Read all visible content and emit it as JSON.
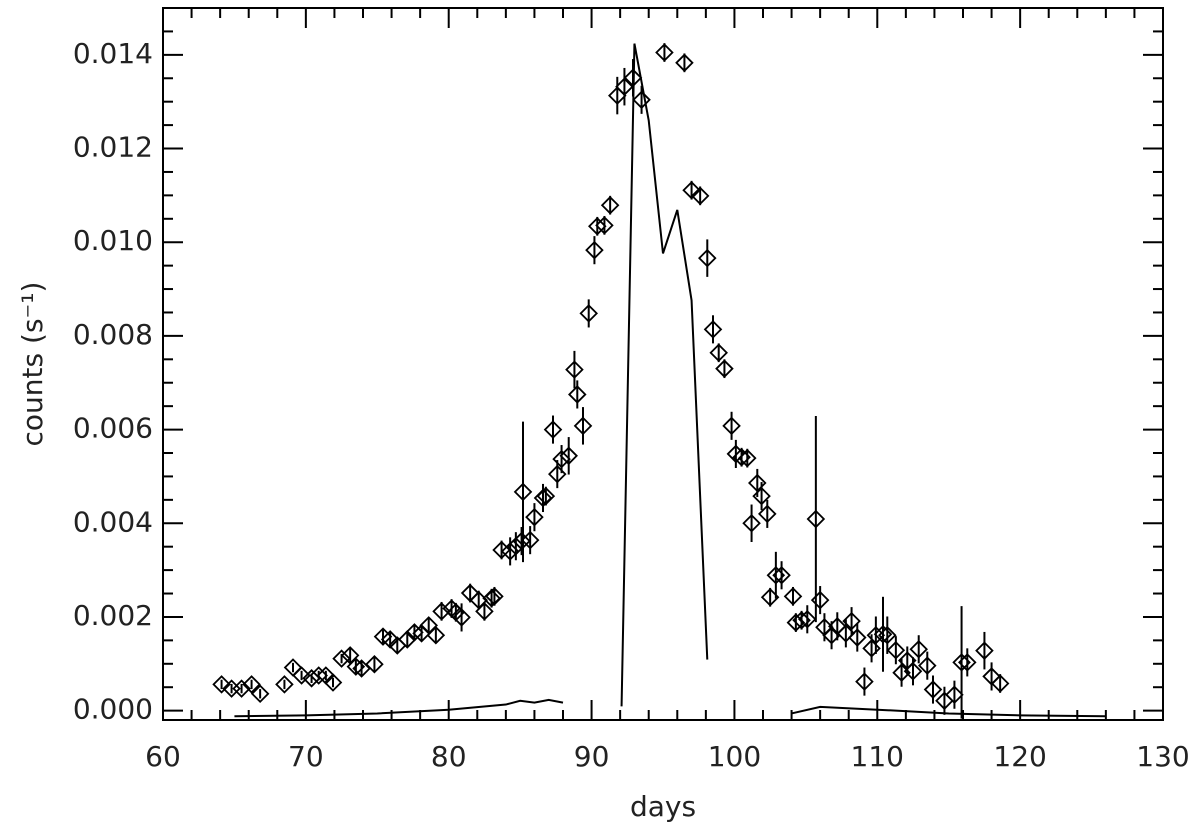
{
  "chart_data": {
    "type": "scatter",
    "xlabel": "days",
    "ylabel": "counts (s⁻¹)",
    "xlim": [
      60,
      130
    ],
    "xticks": [
      60,
      70,
      80,
      90,
      100,
      110,
      120,
      130
    ],
    "ylim": [
      -0.0002,
      0.015
    ],
    "yticks": [
      {
        "value": 0,
        "label": "0.000"
      },
      0.002,
      0.004,
      0.006,
      0.008,
      {
        "value": 0.01,
        "label": "0.010"
      },
      0.012,
      0.014
    ],
    "xminor": 5,
    "yminor": 4,
    "series": [
      {
        "type": "scatter",
        "color": "#000000",
        "x": [
          64.1,
          64.8,
          65.5,
          66.2,
          66.8,
          68.5,
          69.1,
          69.7,
          70.4,
          70.9,
          71.4,
          71.9,
          72.5,
          73.1,
          73.5,
          73.9,
          74.8,
          75.4,
          75.9,
          76.4,
          77.1,
          77.6,
          78.1,
          78.6,
          79.1,
          79.5,
          80.2,
          80.5,
          80.9,
          81.5,
          82.1,
          82.5,
          83.0,
          83.2,
          83.7,
          84.3,
          84.7,
          85.1,
          85.2,
          85.7,
          86.0,
          86.6,
          86.8,
          87.3,
          87.6,
          87.9,
          88.4,
          88.8,
          89.0,
          89.4,
          89.8,
          90.2,
          90.4,
          90.9,
          91.3,
          91.8,
          92.3,
          92.9,
          93.5,
          95.1,
          96.5,
          97.0,
          97.6,
          98.1,
          98.5,
          98.9,
          99.3,
          99.8,
          100.1,
          100.5,
          100.9,
          101.2,
          101.6,
          101.9,
          102.3,
          102.5,
          102.9,
          103.3,
          104.1,
          104.3,
          104.7,
          105.1,
          105.7,
          106.0,
          106.3,
          106.8,
          107.2,
          107.8,
          108.2,
          108.6,
          109.1,
          109.6,
          109.9,
          110.4,
          110.7,
          111.3,
          111.7,
          112.1,
          112.5,
          112.9,
          113.5,
          113.9,
          114.7,
          115.4,
          115.9,
          116.3,
          117.5,
          118.0,
          118.6
        ],
        "values": [
          0.00056,
          0.00047,
          0.00047,
          0.00056,
          0.00036,
          0.00056,
          0.00092,
          0.00075,
          0.00069,
          0.00075,
          0.00075,
          0.0006,
          0.00111,
          0.00118,
          0.00094,
          0.0009,
          0.00099,
          0.00158,
          0.00152,
          0.00139,
          0.00152,
          0.00167,
          0.00165,
          0.00182,
          0.00161,
          0.00212,
          0.00218,
          0.0021,
          0.00199,
          0.00251,
          0.00236,
          0.00212,
          0.0024,
          0.00244,
          0.00343,
          0.0034,
          0.00351,
          0.00362,
          0.00467,
          0.00364,
          0.00413,
          0.00454,
          0.00458,
          0.006,
          0.00505,
          0.00537,
          0.00544,
          0.00728,
          0.00675,
          0.00608,
          0.00848,
          0.00983,
          0.01034,
          0.01036,
          0.01079,
          0.01313,
          0.01332,
          0.01351,
          0.01304,
          0.01405,
          0.01383,
          0.01111,
          0.01099,
          0.00966,
          0.00814,
          0.00764,
          0.0073,
          0.00608,
          0.00548,
          0.00541,
          0.00539,
          0.004,
          0.00486,
          0.00458,
          0.0042,
          0.00242,
          0.00289,
          0.00289,
          0.00244,
          0.00188,
          0.00193,
          0.00195,
          0.00409,
          0.00236,
          0.00178,
          0.00161,
          0.0018,
          0.00165,
          0.00191,
          0.00156,
          0.00062,
          0.00133,
          0.00161,
          0.00163,
          0.00161,
          0.00129,
          0.00081,
          0.00107,
          0.00084,
          0.00131,
          0.00096,
          0.00045,
          0.00021,
          0.00034,
          0.00103,
          0.00103,
          0.00128,
          0.00073,
          0.00058
        ],
        "errors": [
          0.0001,
          0.0001,
          0.0001,
          0.0001,
          0.0001,
          0.0001,
          0.0001,
          0.0001,
          0.0001,
          0.0001,
          0.0001,
          0.0001,
          0.0001,
          0.00015,
          0.00015,
          0.00015,
          0.00015,
          0.00015,
          0.00015,
          0.00015,
          0.00015,
          0.00015,
          0.00015,
          0.00015,
          0.00015,
          0.0002,
          0.0002,
          0.0002,
          0.0003,
          0.0002,
          0.0002,
          0.0002,
          0.0002,
          0.0002,
          0.0002,
          0.0003,
          0.0003,
          0.0003,
          0.0015,
          0.0003,
          0.0003,
          0.0003,
          0.0002,
          0.0003,
          0.0003,
          0.0003,
          0.0004,
          0.0004,
          0.0003,
          0.0004,
          0.0003,
          0.0003,
          0.0002,
          0.0002,
          0.0002,
          0.0004,
          0.0004,
          0.0004,
          0.0003,
          0.0002,
          0.0002,
          0.0002,
          0.0002,
          0.0004,
          0.0003,
          0.0002,
          0.0002,
          0.0003,
          0.0003,
          0.0002,
          0.0002,
          0.0004,
          0.0003,
          0.0003,
          0.0003,
          0.0002,
          0.0005,
          0.0003,
          0.0002,
          0.0002,
          0.0002,
          0.0003,
          0.0022,
          0.0003,
          0.0003,
          0.0003,
          0.0003,
          0.0003,
          0.0003,
          0.0003,
          0.0003,
          0.0003,
          0.0004,
          0.0008,
          0.0004,
          0.0003,
          0.0003,
          0.0003,
          0.0003,
          0.0003,
          0.0003,
          0.0003,
          0.0003,
          0.0003,
          0.0012,
          0.0003,
          0.0004,
          0.0003,
          0.0002
        ]
      },
      {
        "type": "line",
        "color": "#000000",
        "x": [
          65,
          70,
          75,
          80,
          84,
          85,
          86,
          87,
          88,
          null,
          92.1,
          93,
          94,
          95,
          96,
          97,
          98.1,
          null,
          104,
          106,
          110,
          115,
          120,
          126
        ],
        "values": [
          -0.00012,
          -0.0001,
          -6e-05,
          2e-05,
          0.00013,
          0.00021,
          0.00017,
          0.00023,
          0.00017,
          null,
          9e-05,
          0.01424,
          0.0126,
          0.00976,
          0.01069,
          0.00876,
          0.00109,
          null,
          -6e-05,
          8e-05,
          2e-05,
          -6e-05,
          -0.0001,
          -0.00012
        ]
      }
    ]
  }
}
